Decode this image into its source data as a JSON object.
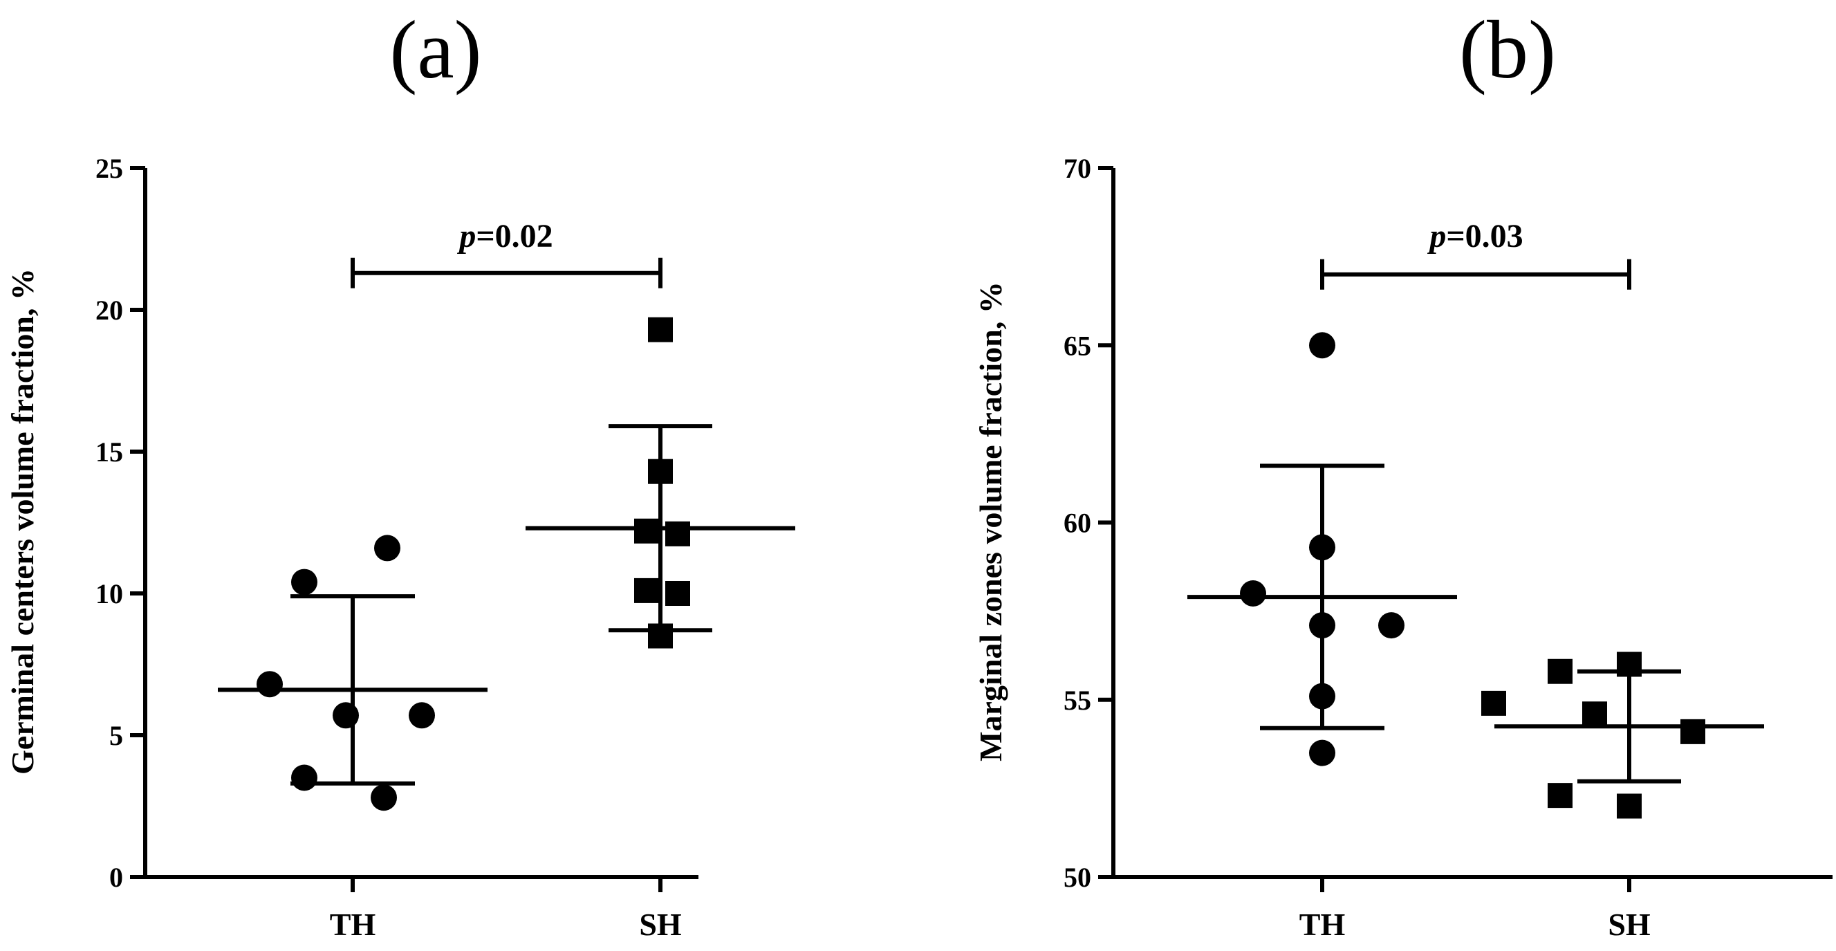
{
  "chart_data": [
    {
      "type": "scatter",
      "panel_label": "(a)",
      "ylabel": "Germinal centers volume fraction, %",
      "categories": [
        "TH",
        "SH"
      ],
      "ylim": [
        0,
        25
      ],
      "yticks": [
        "0",
        "5",
        "10",
        "15",
        "20",
        "25"
      ],
      "series": [
        {
          "name": "TH",
          "marker": "circle",
          "values": [
            11.6,
            10.4,
            6.8,
            5.7,
            5.7,
            3.5,
            2.8
          ],
          "mean": 6.6,
          "sd_low": 3.3,
          "sd_high": 9.9
        },
        {
          "name": "SH",
          "marker": "square",
          "values": [
            19.3,
            14.3,
            12.2,
            12.1,
            10.1,
            10.0,
            8.5
          ],
          "mean": 12.3,
          "sd_low": 8.7,
          "sd_high": 15.9
        }
      ],
      "annotation": {
        "p_symbol": "p",
        "p_value": "=0.02",
        "y": 21.3
      }
    },
    {
      "type": "scatter",
      "panel_label": "(b)",
      "ylabel": "Marginal zones volume fraction, %",
      "categories": [
        "TH",
        "SH"
      ],
      "ylim": [
        50,
        70
      ],
      "yticks": [
        "50",
        "55",
        "60",
        "65",
        "70"
      ],
      "series": [
        {
          "name": "TH",
          "marker": "circle",
          "values": [
            65.0,
            59.3,
            58.0,
            57.1,
            57.1,
            55.1,
            53.5
          ],
          "mean": 57.9,
          "sd_low": 54.2,
          "sd_high": 61.6
        },
        {
          "name": "SH",
          "marker": "square",
          "values": [
            56.0,
            55.8,
            54.9,
            54.6,
            54.1,
            52.3,
            52.0
          ],
          "mean": 54.25,
          "sd_low": 52.7,
          "sd_high": 55.8
        }
      ],
      "annotation": {
        "p_symbol": "p",
        "p_value": "=0.03",
        "y": 67.0
      }
    }
  ]
}
